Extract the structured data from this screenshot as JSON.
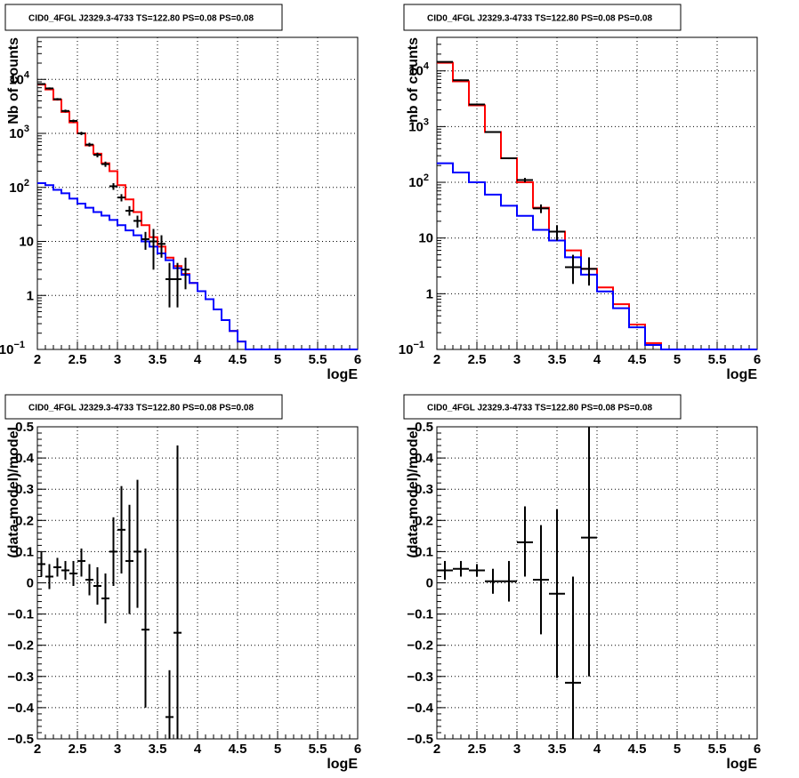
{
  "chart_data": [
    {
      "id": "top-left",
      "type": "line",
      "title": "CID0_4FGL J2329.3-4733 TS=122.80 PS=0.08 PS=0.08",
      "xlabel": "logE",
      "ylabel": "Nb of counts",
      "xlim": [
        2,
        6
      ],
      "ylim": [
        0.1,
        60000
      ],
      "yscale": "log",
      "grid": true,
      "x_ticks": [
        "2",
        "2.5",
        "3",
        "3.5",
        "4",
        "4.5",
        "5",
        "5.5",
        "6"
      ],
      "y_ticks": [
        {
          "v": 0.1,
          "label": "10",
          "sup": "−1"
        },
        {
          "v": 1,
          "label": "1",
          "sup": ""
        },
        {
          "v": 10,
          "label": "10",
          "sup": ""
        },
        {
          "v": 100,
          "label": "10",
          "sup": "2"
        },
        {
          "v": 1000,
          "label": "10",
          "sup": "3"
        },
        {
          "v": 10000,
          "label": "10",
          "sup": "4"
        }
      ],
      "bin_edges": [
        2.0,
        2.1,
        2.2,
        2.3,
        2.4,
        2.5,
        2.6,
        2.7,
        2.8,
        2.9,
        3.0,
        3.1,
        3.2,
        3.3,
        3.4,
        3.5,
        3.6,
        3.7,
        3.8,
        3.9,
        4.0,
        4.1,
        4.2,
        4.3,
        4.4,
        4.5,
        4.6,
        4.7,
        4.8,
        4.9,
        5.0,
        5.1,
        5.2,
        5.3,
        5.4,
        5.5,
        5.6,
        5.7,
        5.8,
        5.9,
        6.0
      ],
      "series": [
        {
          "style": "step",
          "color": "#ff0000",
          "values": [
            8000,
            6500,
            4200,
            2500,
            1600,
            1000,
            600,
            420,
            280,
            200,
            110,
            60,
            35,
            20,
            12,
            8,
            5,
            3.5,
            2.5,
            1.7,
            1.2,
            0.85,
            0.55,
            0.35,
            0.22,
            0.14,
            0.1,
            0.1,
            0.1,
            0.1,
            0.1,
            0.1,
            0.1,
            0.1,
            0.1,
            0.1,
            0.1,
            0.1,
            0.1,
            0.1
          ]
        },
        {
          "style": "step",
          "color": "#0000ff",
          "values": [
            120,
            110,
            90,
            78,
            62,
            50,
            42,
            35,
            30,
            25,
            20,
            16,
            13,
            10,
            8,
            6,
            4.5,
            3.2,
            2.4,
            1.7,
            1.2,
            0.85,
            0.55,
            0.35,
            0.22,
            0.14,
            0.1,
            0.1,
            0.1,
            0.1,
            0.1,
            0.1,
            0.1,
            0.1,
            0.1,
            0.1,
            0.1,
            0.1,
            0.1,
            0.1
          ]
        },
        {
          "style": "errorbar",
          "color": "#000000",
          "x": [
            2.05,
            2.15,
            2.25,
            2.35,
            2.45,
            2.55,
            2.65,
            2.75,
            2.85,
            2.95,
            3.05,
            3.15,
            3.25,
            3.35,
            3.45,
            3.55,
            3.65,
            3.75,
            3.85
          ],
          "xerr": 0.05,
          "y": [
            8200,
            6800,
            4300,
            2600,
            1700,
            1000,
            620,
            400,
            270,
            105,
            65,
            37,
            24,
            11,
            10,
            9,
            2,
            2,
            3
          ],
          "ylo": [
            7900,
            6500,
            4100,
            2450,
            1600,
            930,
            570,
            360,
            240,
            90,
            55,
            30,
            18,
            7,
            3,
            5,
            0.6,
            0.6,
            1.3
          ],
          "yhi": [
            8500,
            7100,
            4500,
            2750,
            1800,
            1070,
            670,
            440,
            300,
            120,
            75,
            45,
            30,
            15,
            17,
            13,
            4,
            4,
            5
          ]
        }
      ]
    },
    {
      "id": "top-right",
      "type": "line",
      "title": "CID0_4FGL J2329.3-4733 TS=122.80 PS=0.08 PS=0.08",
      "xlabel": "logE",
      "ylabel": "nb of counts",
      "xlim": [
        2,
        6
      ],
      "ylim": [
        0.1,
        40000
      ],
      "yscale": "log",
      "grid": true,
      "x_ticks": [
        "2",
        "2.5",
        "3",
        "3.5",
        "4",
        "4.5",
        "5",
        "5.5",
        "6"
      ],
      "y_ticks": [
        {
          "v": 0.1,
          "label": "10",
          "sup": "−1"
        },
        {
          "v": 1,
          "label": "1",
          "sup": ""
        },
        {
          "v": 10,
          "label": "10",
          "sup": ""
        },
        {
          "v": 100,
          "label": "10",
          "sup": "2"
        },
        {
          "v": 1000,
          "label": "10",
          "sup": "3"
        },
        {
          "v": 10000,
          "label": "10",
          "sup": "4"
        }
      ],
      "bin_edges": [
        2.0,
        2.2,
        2.4,
        2.6,
        2.8,
        3.0,
        3.2,
        3.4,
        3.6,
        3.8,
        4.0,
        4.2,
        4.4,
        4.6,
        4.8,
        5.0,
        5.2,
        5.4,
        5.6,
        5.8,
        6.0
      ],
      "series": [
        {
          "style": "step",
          "color": "#ff0000",
          "values": [
            14000,
            6500,
            2400,
            800,
            270,
            100,
            35,
            13,
            6,
            2.8,
            1.3,
            0.65,
            0.28,
            0.13,
            0.1,
            0.1,
            0.1,
            0.1,
            0.1,
            0.1
          ]
        },
        {
          "style": "step",
          "color": "#0000ff",
          "values": [
            220,
            150,
            100,
            60,
            38,
            25,
            14,
            9,
            4.5,
            2.2,
            1.1,
            0.55,
            0.25,
            0.12,
            0.1,
            0.1,
            0.1,
            0.1,
            0.1,
            0.1
          ]
        },
        {
          "style": "errorbar",
          "color": "#000000",
          "x": [
            2.1,
            2.3,
            2.5,
            2.7,
            2.9,
            3.1,
            3.3,
            3.5,
            3.7,
            3.9
          ],
          "xerr": 0.1,
          "y": [
            14500,
            6800,
            2500,
            800,
            270,
            110,
            34,
            13,
            3,
            2.8
          ],
          "ylo": [
            14200,
            6600,
            2400,
            780,
            260,
            100,
            28,
            9,
            1.5,
            1.4
          ],
          "yhi": [
            14800,
            7000,
            2600,
            820,
            280,
            120,
            40,
            17,
            5,
            4.5
          ]
        }
      ]
    },
    {
      "id": "bottom-left",
      "type": "scatter",
      "title": "CID0_4FGL J2329.3-4733 TS=122.80 PS=0.08 PS=0.08",
      "xlabel": "logE",
      "ylabel": "(data-model)/model",
      "xlim": [
        2,
        6
      ],
      "ylim": [
        -0.5,
        0.5
      ],
      "grid": true,
      "x_ticks": [
        "2",
        "2.5",
        "3",
        "3.5",
        "4",
        "4.5",
        "5",
        "5.5",
        "6"
      ],
      "y_ticks": [
        "−0.5",
        "−0.4",
        "−0.3",
        "−0.2",
        "−0.1",
        "0",
        "0.1",
        "0.2",
        "0.3",
        "0.4",
        "0.5"
      ],
      "series": [
        {
          "style": "errorbar",
          "color": "#000000",
          "x": [
            2.05,
            2.15,
            2.25,
            2.35,
            2.45,
            2.55,
            2.65,
            2.75,
            2.85,
            2.95,
            3.05,
            3.15,
            3.25,
            3.35,
            3.65,
            3.75
          ],
          "xerr": 0.05,
          "y": [
            0.06,
            0.02,
            0.05,
            0.04,
            0.03,
            0.07,
            0.01,
            -0.01,
            -0.05,
            0.1,
            0.17,
            0.07,
            0.1,
            -0.15,
            -0.43,
            -0.16
          ],
          "ylo": [
            0.02,
            -0.02,
            0.02,
            0.01,
            -0.01,
            0.02,
            -0.04,
            -0.07,
            -0.13,
            -0.01,
            0.03,
            -0.1,
            -0.08,
            -0.4,
            -0.5,
            -0.5
          ],
          "yhi": [
            0.1,
            0.06,
            0.08,
            0.07,
            0.07,
            0.11,
            0.06,
            0.05,
            0.03,
            0.21,
            0.31,
            0.25,
            0.33,
            0.11,
            -0.28,
            0.44
          ]
        }
      ]
    },
    {
      "id": "bottom-right",
      "type": "scatter",
      "title": "CID0_4FGL J2329.3-4733 TS=122.80 PS=0.08 PS=0.08",
      "xlabel": "logE",
      "ylabel": "(data-model)/model",
      "xlim": [
        2,
        6
      ],
      "ylim": [
        -0.5,
        0.5
      ],
      "grid": true,
      "x_ticks": [
        "2",
        "2.5",
        "3",
        "3.5",
        "4",
        "4.5",
        "5",
        "5.5",
        "6"
      ],
      "y_ticks": [
        "−0.5",
        "−0.4",
        "−0.3",
        "−0.2",
        "−0.1",
        "0",
        "0.1",
        "0.2",
        "0.3",
        "0.4",
        "0.5"
      ],
      "series": [
        {
          "style": "errorbar",
          "color": "#000000",
          "x": [
            2.1,
            2.3,
            2.5,
            2.7,
            2.9,
            3.1,
            3.3,
            3.5,
            3.7,
            3.9
          ],
          "xerr": 0.1,
          "y": [
            0.04,
            0.045,
            0.04,
            0.005,
            0.005,
            0.13,
            0.01,
            -0.035,
            -0.32,
            0.145
          ],
          "ylo": [
            0.01,
            0.02,
            0.02,
            -0.035,
            -0.06,
            0.02,
            -0.165,
            -0.305,
            -0.5,
            -0.3
          ],
          "yhi": [
            0.07,
            0.07,
            0.06,
            0.045,
            0.07,
            0.245,
            0.185,
            0.235,
            0.02,
            0.5
          ]
        }
      ]
    }
  ]
}
